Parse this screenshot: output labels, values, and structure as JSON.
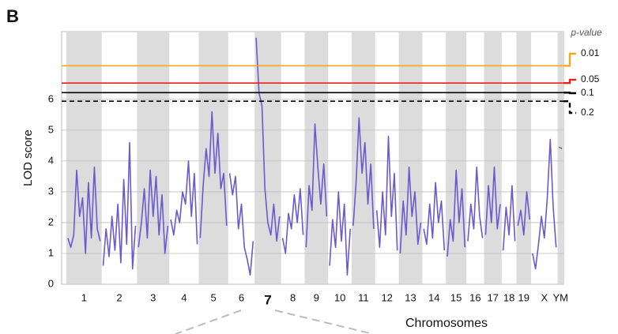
{
  "chart_data": {
    "type": "line",
    "panel_label": "B",
    "ylabel": "LOD score",
    "xlabel": "Chromosomes",
    "color": "#6a5acd",
    "band_color": "#dcdcdc",
    "ylim": [
      0,
      8.2
    ],
    "yticks": [
      0,
      1,
      2,
      3,
      4,
      5,
      6
    ],
    "grid": true,
    "highlight_category": "7",
    "categories": [
      "1",
      "2",
      "3",
      "4",
      "5",
      "6",
      "7",
      "8",
      "9",
      "10",
      "11",
      "12",
      "13",
      "14",
      "15",
      "16",
      "17",
      "18",
      "19",
      "X",
      "YM"
    ],
    "series": [
      {
        "name": "LOD",
        "values": [
          [
            1.5,
            1.2,
            1.6,
            3.7,
            2.2,
            2.8,
            1.0,
            3.3,
            1.5,
            3.8,
            1.8,
            1.4
          ],
          [
            0.6,
            1.8,
            0.9,
            2.2,
            1.1,
            2.6,
            0.7,
            3.4,
            1.3,
            4.6,
            0.5,
            1.9
          ],
          [
            1.2,
            2.0,
            3.1,
            1.5,
            3.7,
            2.2,
            3.5,
            1.6,
            2.9,
            1.0,
            1.9
          ],
          [
            2.1,
            1.6,
            2.4,
            2.0,
            3.0,
            2.6,
            4.0,
            2.2,
            3.6,
            1.3
          ],
          [
            1.5,
            3.2,
            4.4,
            3.5,
            5.6,
            3.6,
            4.9,
            3.1,
            3.6,
            1.9
          ],
          [
            3.6,
            2.9,
            3.5,
            1.8,
            2.6,
            1.2,
            0.8,
            0.3,
            1.4
          ],
          [
            8.0,
            6.2,
            5.8,
            3.1,
            2.0,
            1.6,
            2.6,
            1.4,
            2.2
          ],
          [
            1.5,
            1.0,
            2.3,
            1.8,
            2.9,
            2.0,
            3.1,
            1.6
          ],
          [
            1.2,
            3.2,
            2.4,
            5.2,
            3.8,
            2.6,
            3.9,
            2.2
          ],
          [
            0.6,
            2.1,
            1.2,
            3.0,
            1.4,
            2.6,
            0.3,
            1.8
          ],
          [
            1.9,
            3.3,
            5.4,
            3.6,
            4.6,
            2.6,
            3.9,
            1.8
          ],
          [
            2.4,
            1.2,
            3.0,
            1.6,
            4.8,
            2.2,
            3.6,
            1.1
          ],
          [
            1.0,
            2.7,
            1.6,
            3.8,
            2.2,
            3.0,
            1.3,
            2.0
          ],
          [
            1.8,
            1.3,
            2.6,
            1.5,
            3.3,
            2.0,
            2.7,
            1.1
          ],
          [
            0.9,
            2.1,
            1.4,
            3.7,
            2.0,
            3.1,
            1.2
          ],
          [
            1.4,
            2.6,
            1.8,
            3.8,
            2.2,
            1.5
          ],
          [
            1.6,
            3.2,
            2.0,
            3.8,
            1.8,
            2.6
          ],
          [
            1.1,
            2.5,
            1.6,
            3.2,
            1.4
          ],
          [
            1.9,
            2.4,
            1.6,
            3.0,
            2.1
          ],
          [
            1.0,
            0.5,
            1.3,
            2.2,
            1.5,
            2.8,
            4.7,
            2.5,
            1.2
          ],
          [
            4.45,
            4.4
          ]
        ]
      }
    ],
    "thresholds_title": "p-value",
    "thresholds": [
      {
        "label": "0.01",
        "value": 7.09,
        "color": "#f5a623",
        "dashed": false
      },
      {
        "label": "0.05",
        "value": 6.53,
        "color": "#e8221c",
        "dashed": false
      },
      {
        "label": "0.1",
        "value": 6.22,
        "color": "#000000",
        "dashed": false
      },
      {
        "label": "0.2",
        "value": 5.94,
        "color": "#000000",
        "dashed": true
      }
    ]
  }
}
